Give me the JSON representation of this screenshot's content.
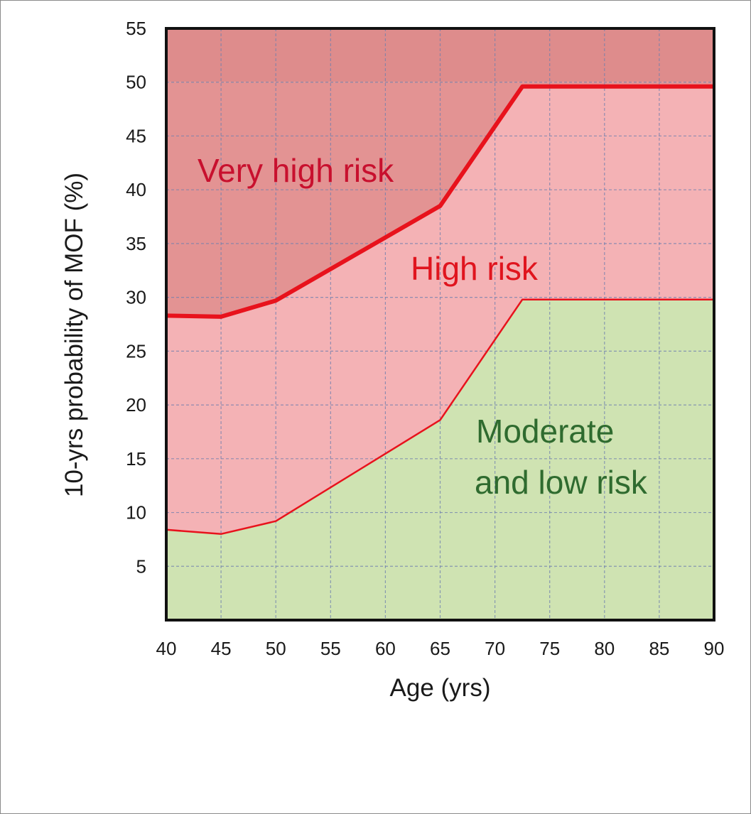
{
  "chart_data": {
    "type": "area",
    "title": "",
    "xlabel": "Age (yrs)",
    "ylabel": "10-yrs probability of MOF (%)",
    "xlim": [
      40,
      90
    ],
    "ylim": [
      0,
      55
    ],
    "x_ticks": [
      40,
      45,
      50,
      55,
      60,
      65,
      70,
      75,
      80,
      85,
      90
    ],
    "y_ticks": [
      5,
      10,
      15,
      20,
      25,
      30,
      35,
      40,
      45,
      50,
      55
    ],
    "grid": true,
    "regions": [
      {
        "name": "Very high risk",
        "color": "#e39393",
        "label_color": "#c8102e"
      },
      {
        "name": "High risk",
        "color": "#f4b2b5",
        "label_color": "#e0141e"
      },
      {
        "name": "Moderate and low risk",
        "color": "#cfe3b2",
        "label_color": "#2f6b2f"
      }
    ],
    "boundaries": [
      {
        "between": [
          "Very high risk",
          "High risk"
        ],
        "color": "#e8121c",
        "points": [
          [
            40,
            28.3
          ],
          [
            45,
            28.2
          ],
          [
            50,
            29.7
          ],
          [
            65,
            38.5
          ],
          [
            72.5,
            49.6
          ],
          [
            90,
            49.6
          ]
        ]
      },
      {
        "between": [
          "High risk",
          "Moderate and low risk"
        ],
        "color": "#e8121c",
        "points": [
          [
            40,
            8.4
          ],
          [
            45,
            8.0
          ],
          [
            50,
            9.2
          ],
          [
            65,
            18.6
          ],
          [
            72.5,
            29.8
          ],
          [
            90,
            29.8
          ]
        ]
      }
    ],
    "annotations": [
      {
        "text": "Very high risk",
        "region": "Very high risk"
      },
      {
        "text": "High risk",
        "region": "High risk"
      },
      {
        "text": "Moderate",
        "region": "Moderate and low risk"
      },
      {
        "text": "and low risk",
        "region": "Moderate and low risk"
      }
    ]
  }
}
